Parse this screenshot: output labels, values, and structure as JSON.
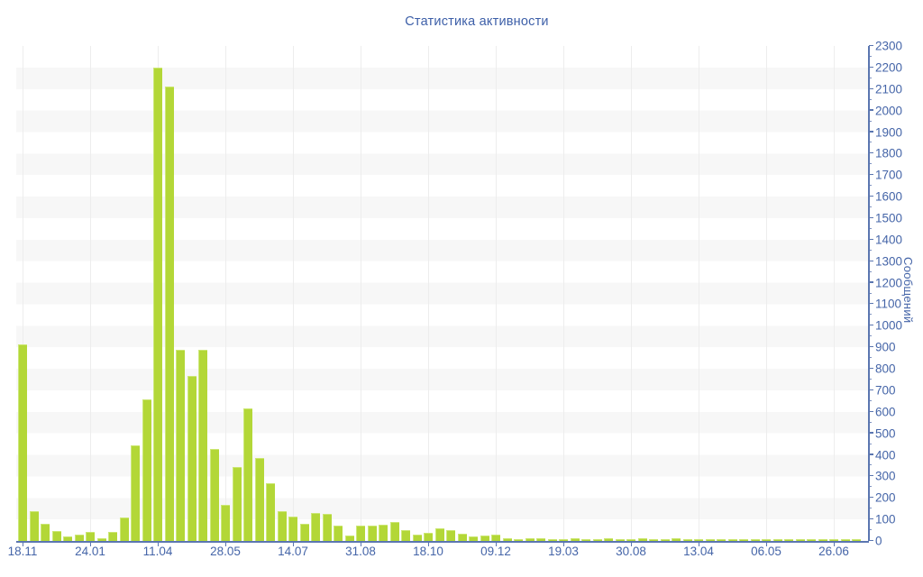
{
  "title": "Статистика активности",
  "colors": {
    "bar_fill": "#b3d737",
    "bar_edge_highlight": "#cbe671",
    "axis_line": "#5b76b0",
    "label_text": "#4565a8",
    "title_text": "#3d5fa8",
    "stripe_gray": "#f7f7f7",
    "stripe_white": "#ffffff",
    "gridline": "#ededed"
  },
  "y_axis": {
    "label": "Сообщений",
    "min": 0,
    "max": 2300,
    "major_step": 100,
    "minor_step": 50,
    "side": "right"
  },
  "x_axis": {
    "tick_labels": [
      "18.11",
      "24.01",
      "11.04",
      "28.05",
      "14.07",
      "31.08",
      "18.10",
      "09.12",
      "19.03",
      "30.08",
      "13.04",
      "06.05",
      "26.06"
    ],
    "bars_per_tick": 6
  },
  "chart_data": {
    "type": "bar",
    "title": "Статистика активности",
    "ylabel": "Сообщений",
    "ylim": [
      0,
      2300
    ],
    "grid": "horizontal-stripes",
    "legend": "none",
    "x_tick_labels": [
      "18.11",
      "24.01",
      "11.04",
      "28.05",
      "14.07",
      "31.08",
      "18.10",
      "09.12",
      "19.03",
      "30.08",
      "13.04",
      "06.05",
      "26.06"
    ],
    "bars_per_tick": 6,
    "values": [
      915,
      137,
      79,
      46,
      21,
      29,
      42,
      12,
      40,
      110,
      445,
      658,
      2200,
      2110,
      888,
      767,
      890,
      427,
      168,
      343,
      615,
      384,
      270,
      139,
      112,
      80,
      129,
      124,
      70,
      24,
      73,
      73,
      77,
      87,
      49,
      28,
      38,
      59,
      49,
      35,
      21,
      24,
      28,
      11,
      10,
      12,
      11,
      10,
      10,
      12,
      10,
      10,
      12,
      10,
      10,
      12,
      10,
      10,
      12,
      10,
      10,
      8,
      8,
      8,
      8,
      8,
      8,
      8,
      8,
      8,
      8,
      8,
      8,
      8,
      8
    ]
  }
}
